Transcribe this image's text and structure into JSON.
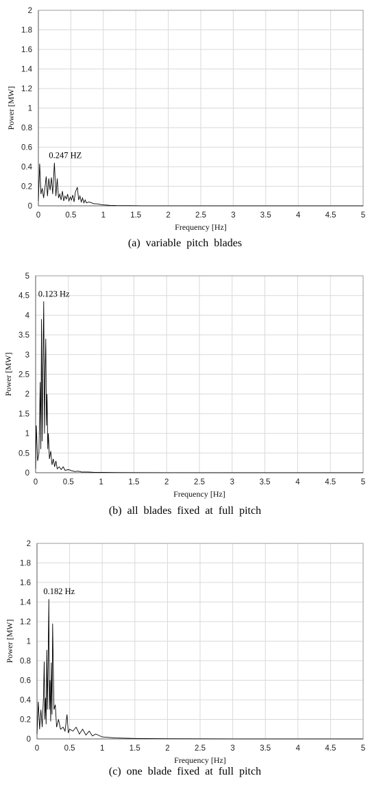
{
  "chart_data": [
    {
      "type": "line",
      "caption": "(a)  variable  pitch  blades",
      "xlabel": "Frequency [Hz]",
      "ylabel": "Power [MW]",
      "xlim": [
        0,
        5
      ],
      "ylim": [
        0,
        2
      ],
      "xticks": [
        "0",
        "0.5",
        "1",
        "1.5",
        "2",
        "2.5",
        "3",
        "3.5",
        "4",
        "4.5",
        "5"
      ],
      "yticks": [
        "0",
        "0.2",
        "0.4",
        "0.6",
        "0.8",
        "1",
        "1.2",
        "1.4",
        "1.6",
        "1.8",
        "2"
      ],
      "grid": true,
      "annotation": {
        "text": "0.247 HZ",
        "x": 0.247,
        "y": 0.44
      },
      "series": [
        {
          "x": [
            0.0,
            0.02,
            0.04,
            0.06,
            0.08,
            0.1,
            0.12,
            0.14,
            0.16,
            0.18,
            0.2,
            0.22,
            0.247,
            0.27,
            0.29,
            0.31,
            0.33,
            0.35,
            0.37,
            0.39,
            0.41,
            0.43,
            0.45,
            0.47,
            0.49,
            0.51,
            0.53,
            0.55,
            0.57,
            0.6,
            0.62,
            0.64,
            0.66,
            0.68,
            0.7,
            0.72,
            0.74,
            0.78,
            0.82,
            0.86,
            0.9,
            0.95,
            1.0,
            1.05,
            1.1,
            1.2,
            1.4,
            1.6,
            2.0,
            3.0,
            4.0,
            5.0
          ],
          "y": [
            0.05,
            0.43,
            0.12,
            0.18,
            0.08,
            0.18,
            0.3,
            0.1,
            0.28,
            0.16,
            0.29,
            0.12,
            0.44,
            0.1,
            0.28,
            0.08,
            0.12,
            0.06,
            0.15,
            0.05,
            0.1,
            0.07,
            0.12,
            0.05,
            0.09,
            0.06,
            0.11,
            0.04,
            0.14,
            0.19,
            0.06,
            0.1,
            0.04,
            0.08,
            0.03,
            0.06,
            0.03,
            0.04,
            0.03,
            0.02,
            0.02,
            0.015,
            0.01,
            0.008,
            0.005,
            0.003,
            0.002,
            0.001,
            0.001,
            0.0,
            0.0,
            0.0
          ]
        }
      ]
    },
    {
      "type": "line",
      "caption": "(b)  all  blades  fixed  at  full  pitch",
      "xlabel": "Frequency [Hz]",
      "ylabel": "Power [MW]",
      "xlim": [
        0,
        5
      ],
      "ylim": [
        0,
        5
      ],
      "xticks": [
        "0",
        "0.5",
        "1",
        "1.5",
        "2",
        "2.5",
        "3",
        "3.5",
        "4",
        "4.5",
        "5"
      ],
      "yticks": [
        "0",
        "0.5",
        "1",
        "1.5",
        "2",
        "2.5",
        "3",
        "3.5",
        "4",
        "4.5",
        "5"
      ],
      "grid": true,
      "annotation": {
        "text": "0.123 Hz",
        "x": 0.123,
        "y": 4.35
      },
      "series": [
        {
          "x": [
            0.0,
            0.01,
            0.03,
            0.05,
            0.07,
            0.08,
            0.09,
            0.1,
            0.11,
            0.123,
            0.135,
            0.145,
            0.155,
            0.165,
            0.175,
            0.185,
            0.195,
            0.21,
            0.23,
            0.25,
            0.27,
            0.29,
            0.31,
            0.33,
            0.36,
            0.39,
            0.42,
            0.45,
            0.5,
            0.55,
            0.6,
            0.65,
            0.7,
            0.8,
            0.9,
            1.0,
            1.2,
            1.5,
            2.0,
            3.0,
            4.0,
            5.0
          ],
          "y": [
            0.1,
            1.2,
            0.3,
            0.5,
            2.3,
            0.6,
            3.9,
            0.8,
            2.5,
            4.35,
            1.0,
            2.6,
            3.4,
            1.2,
            2.0,
            0.6,
            1.0,
            0.35,
            0.55,
            0.2,
            0.35,
            0.15,
            0.3,
            0.1,
            0.15,
            0.08,
            0.15,
            0.06,
            0.08,
            0.05,
            0.03,
            0.04,
            0.02,
            0.02,
            0.01,
            0.01,
            0.005,
            0.003,
            0.001,
            0.0,
            0.0,
            0.0
          ]
        }
      ]
    },
    {
      "type": "line",
      "caption": "(c)  one  blade  fixed  at  full  pitch",
      "xlabel": "Frequency [Hz]",
      "ylabel": "Power [MW]",
      "xlim": [
        0,
        5
      ],
      "ylim": [
        0,
        2
      ],
      "xticks": [
        "0",
        "0.5",
        "1",
        "1.5",
        "2",
        "2.5",
        "3",
        "3.5",
        "4",
        "4.5",
        "5"
      ],
      "yticks": [
        "0",
        "0.2",
        "0.4",
        "0.6",
        "0.8",
        "1",
        "1.2",
        "1.4",
        "1.6",
        "1.8",
        "2"
      ],
      "grid": true,
      "annotation": {
        "text": "0.182 Hz",
        "x": 0.182,
        "y": 1.43
      },
      "series": [
        {
          "x": [
            0.0,
            0.02,
            0.04,
            0.06,
            0.08,
            0.1,
            0.11,
            0.12,
            0.13,
            0.14,
            0.15,
            0.16,
            0.17,
            0.182,
            0.19,
            0.2,
            0.21,
            0.22,
            0.23,
            0.24,
            0.26,
            0.28,
            0.3,
            0.33,
            0.36,
            0.4,
            0.43,
            0.46,
            0.48,
            0.5,
            0.55,
            0.6,
            0.65,
            0.7,
            0.75,
            0.8,
            0.85,
            0.9,
            1.0,
            1.2,
            1.5,
            2.0,
            3.0,
            4.0,
            5.0
          ],
          "y": [
            0.05,
            0.38,
            0.1,
            0.3,
            0.12,
            0.44,
            0.79,
            0.2,
            0.42,
            0.15,
            0.91,
            0.3,
            0.8,
            1.43,
            0.3,
            0.6,
            0.18,
            0.78,
            0.25,
            1.18,
            0.3,
            0.35,
            0.12,
            0.2,
            0.1,
            0.12,
            0.08,
            0.25,
            0.06,
            0.1,
            0.08,
            0.12,
            0.05,
            0.1,
            0.04,
            0.08,
            0.03,
            0.05,
            0.02,
            0.01,
            0.005,
            0.002,
            0.0,
            0.0,
            0.0
          ]
        }
      ]
    }
  ]
}
